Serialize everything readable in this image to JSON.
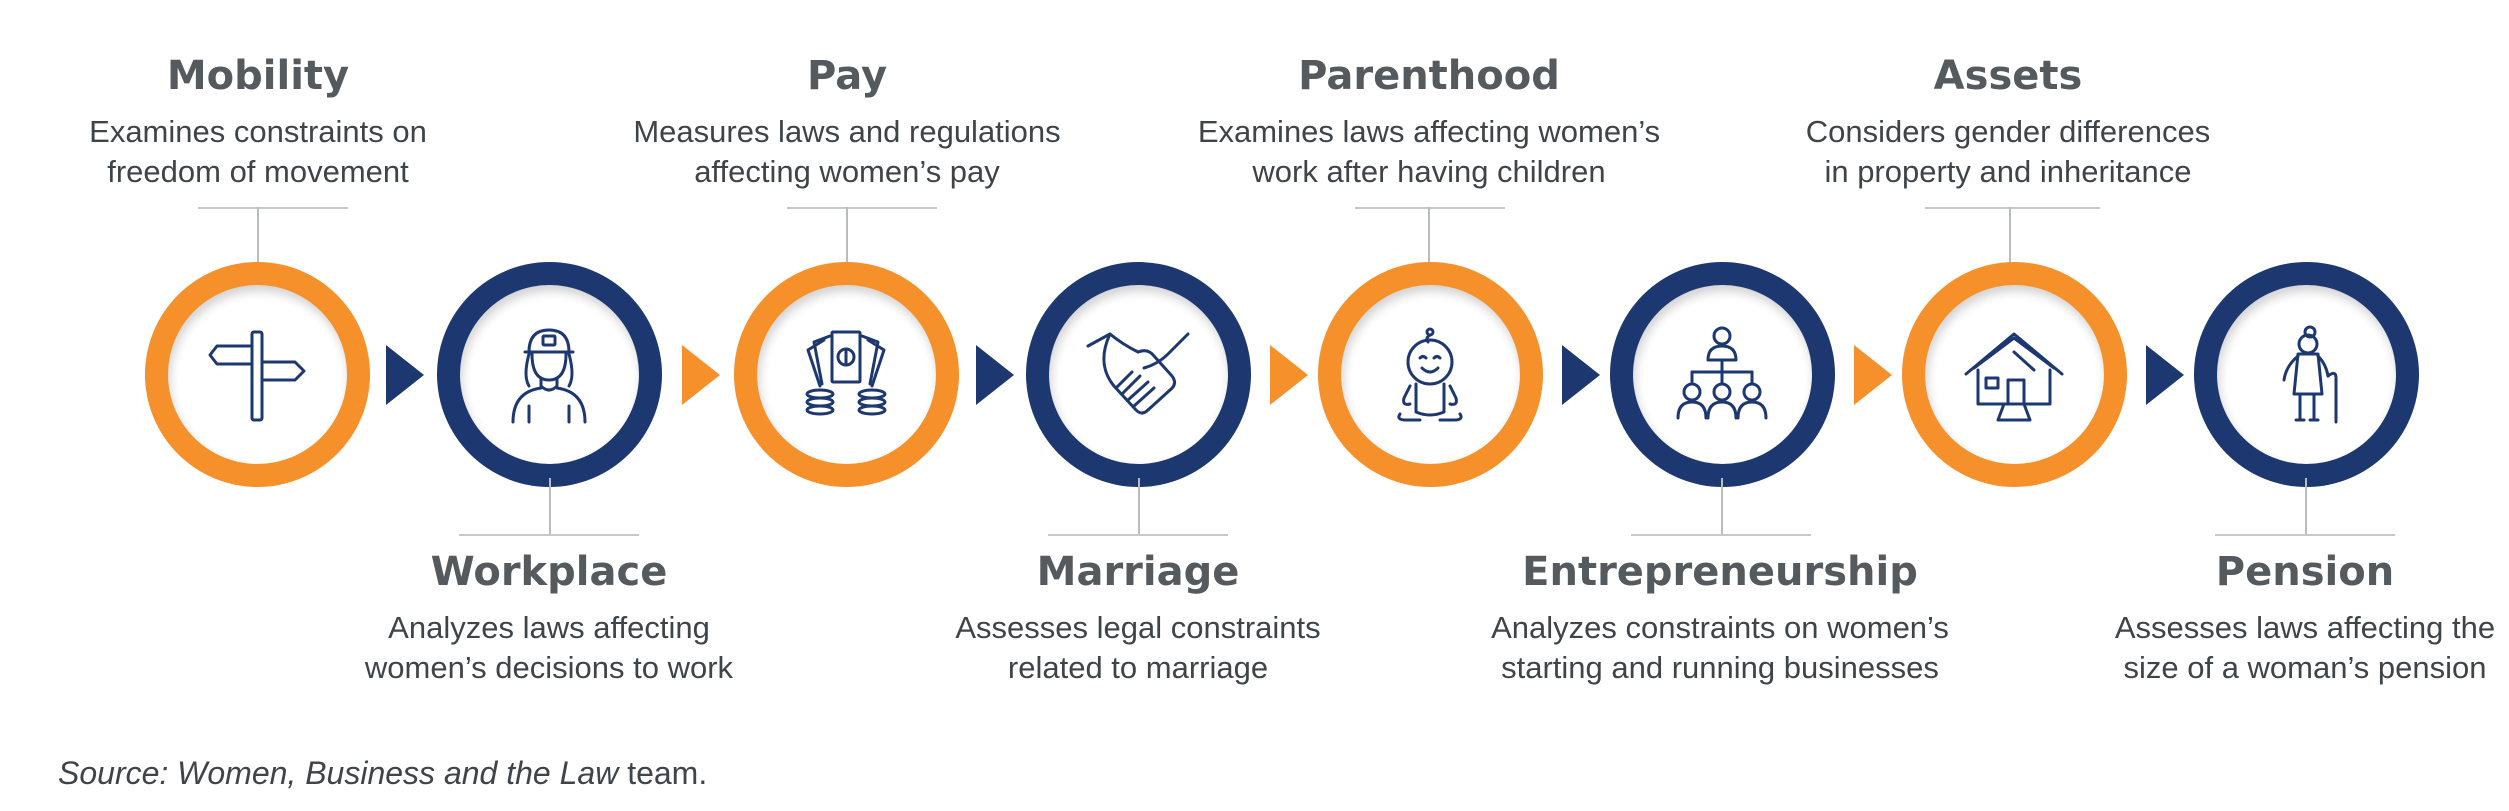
{
  "steps": [
    {
      "id": "mobility",
      "title": "Mobility",
      "desc_line1": "Examines constraints on",
      "desc_line2": "freedom of movement",
      "ring": "orange",
      "icon": "signpost-icon"
    },
    {
      "id": "workplace",
      "title": "Workplace",
      "desc_line1": "Analyzes laws affecting",
      "desc_line2": "women’s decisions to work",
      "ring": "navy",
      "icon": "woman-worker-icon"
    },
    {
      "id": "pay",
      "title": "Pay",
      "desc_line1": "Measures laws and regulations",
      "desc_line2": "affecting women’s pay",
      "ring": "orange",
      "icon": "money-icon"
    },
    {
      "id": "marriage",
      "title": "Marriage",
      "desc_line1": "Assesses legal constraints",
      "desc_line2": "related to marriage",
      "ring": "navy",
      "icon": "handshake-icon"
    },
    {
      "id": "parenthood",
      "title": "Parenthood",
      "desc_line1": "Examines laws affecting women’s",
      "desc_line2": "work after having children",
      "ring": "orange",
      "icon": "baby-icon"
    },
    {
      "id": "entrepreneurship",
      "title": "Entrepreneurship",
      "desc_line1": "Analyzes constraints on women’s",
      "desc_line2": "starting and running businesses",
      "ring": "navy",
      "icon": "org-chart-icon"
    },
    {
      "id": "assets",
      "title": "Assets",
      "desc_line1": "Considers gender differences",
      "desc_line2": "in property and inheritance",
      "ring": "orange",
      "icon": "house-icon"
    },
    {
      "id": "pension",
      "title": "Pension",
      "desc_line1": "Assesses laws affecting the",
      "desc_line2": "size of a woman’s pension",
      "ring": "navy",
      "icon": "elderly-woman-icon"
    }
  ],
  "source": {
    "prefix": "Source: ",
    "italic": "Women, Business and the Law",
    "suffix": " team."
  },
  "colors": {
    "orange": "#f5902a",
    "navy": "#1d3870",
    "text": "#3f4448",
    "title": "#555a5f"
  }
}
